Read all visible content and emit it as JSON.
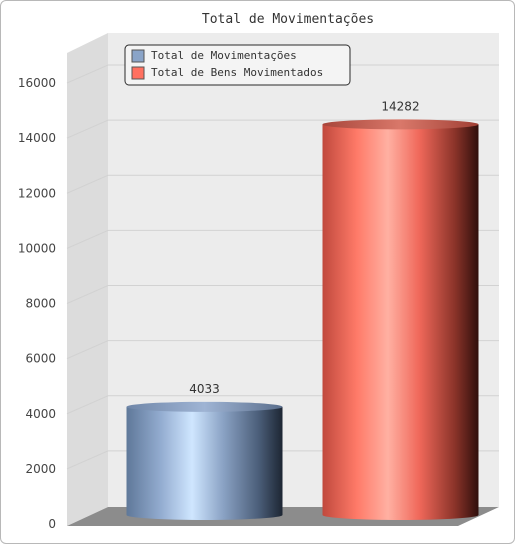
{
  "chart_data": {
    "type": "bar",
    "title": "Total de Movimentações",
    "xlabel": "",
    "ylabel": "",
    "ylim": [
      0,
      17000
    ],
    "yticks": [
      0,
      2000,
      4000,
      6000,
      8000,
      10000,
      12000,
      14000,
      16000
    ],
    "grid": true,
    "legend_position": "top-left",
    "series": [
      {
        "name": "Total de Movimentações",
        "value": 4033,
        "label": "4033",
        "color": "#8aa4c8"
      },
      {
        "name": "Total de Bens Movimentados",
        "value": 14282,
        "label": "14282",
        "color": "#ff7060"
      }
    ]
  }
}
